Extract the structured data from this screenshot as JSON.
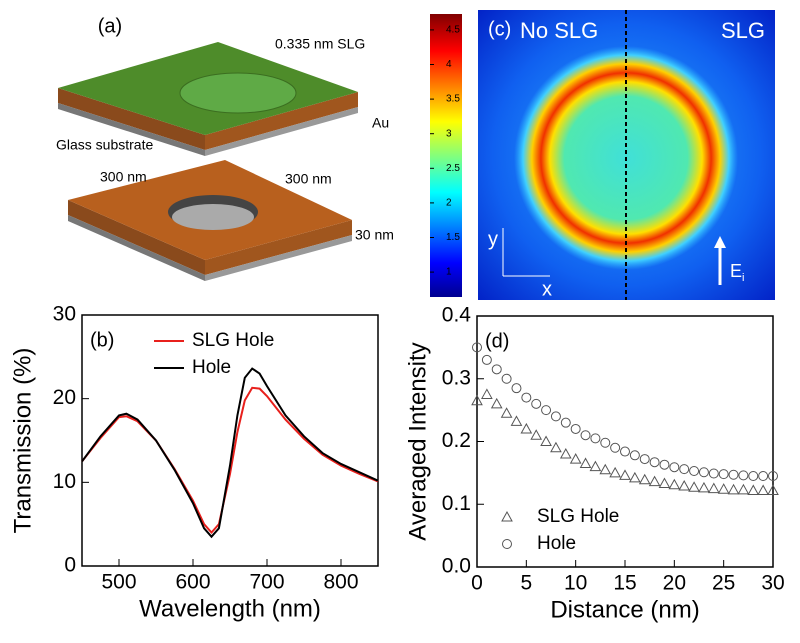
{
  "diagram": {
    "label": "(a)",
    "layer_label": "0.335 nm SLG",
    "metal_label": "Au",
    "substrate_label": "Glass substrate",
    "width_label": "300 nm",
    "length_label": "300 nm",
    "thickness_label": "30 nm"
  },
  "field_map": {
    "label": "(c)",
    "left_label": "No SLG",
    "right_label": "SLG",
    "y_axis_label": "y",
    "x_axis_label": "x",
    "field_label": "E",
    "field_subscript": "i",
    "colorbar": {
      "clim": [
        0.64,
        4.73
      ],
      "ticks": [
        1,
        1.5,
        2,
        2.5,
        3,
        3.5,
        4,
        4.5
      ]
    }
  },
  "chart_data": [
    {
      "type": "line",
      "label": "(b)",
      "xlabel": "Wavelength (nm)",
      "ylabel": "Transmission (%)",
      "x": [
        450,
        475,
        500,
        510,
        525,
        550,
        575,
        600,
        615,
        625,
        635,
        650,
        660,
        670,
        680,
        690,
        700,
        725,
        750,
        775,
        800,
        825,
        850
      ],
      "series": [
        {
          "name": "SLG Hole",
          "color": "#e8201c",
          "values": [
            12.5,
            15.3,
            17.8,
            17.9,
            17.3,
            15,
            11.6,
            7.8,
            5,
            4,
            5,
            11,
            16,
            19.8,
            21.3,
            21.2,
            20.3,
            17.5,
            15.2,
            13.3,
            12,
            11,
            10.1
          ]
        },
        {
          "name": "Hole",
          "color": "#000000",
          "values": [
            12.5,
            15.5,
            18,
            18.2,
            17.5,
            15,
            11.5,
            7.5,
            4.5,
            3.5,
            4.5,
            12,
            18,
            22.5,
            23.6,
            23,
            21.5,
            18,
            15.5,
            13.5,
            12.2,
            11.2,
            10.2
          ]
        }
      ],
      "xlim": [
        450,
        850
      ],
      "ylim": [
        0,
        30
      ],
      "xticks": [
        500,
        600,
        700,
        800
      ],
      "yticks": [
        0,
        10,
        20,
        30
      ],
      "legend": "upper left"
    },
    {
      "type": "scatter",
      "label": "(d)",
      "xlabel": "Distance (nm)",
      "ylabel": "Averaged Intensity",
      "x": [
        0,
        1,
        2,
        3,
        4,
        5,
        6,
        7,
        8,
        9,
        10,
        11,
        12,
        13,
        14,
        15,
        16,
        17,
        18,
        19,
        20,
        21,
        22,
        23,
        24,
        25,
        26,
        27,
        28,
        29,
        30
      ],
      "series": [
        {
          "name": "SLG Hole",
          "color": "#555555",
          "marker": "triangle",
          "values": [
            0.265,
            0.275,
            0.26,
            0.245,
            0.232,
            0.22,
            0.21,
            0.2,
            0.19,
            0.18,
            0.172,
            0.165,
            0.16,
            0.155,
            0.15,
            0.146,
            0.142,
            0.139,
            0.136,
            0.133,
            0.131,
            0.129,
            0.127,
            0.126,
            0.125,
            0.124,
            0.123,
            0.123,
            0.122,
            0.122,
            0.122
          ]
        },
        {
          "name": "Hole",
          "color": "#555555",
          "marker": "circle",
          "values": [
            0.35,
            0.33,
            0.315,
            0.3,
            0.285,
            0.27,
            0.26,
            0.25,
            0.24,
            0.23,
            0.22,
            0.21,
            0.205,
            0.198,
            0.19,
            0.184,
            0.178,
            0.172,
            0.167,
            0.163,
            0.159,
            0.156,
            0.153,
            0.151,
            0.149,
            0.148,
            0.147,
            0.146,
            0.145,
            0.145,
            0.145
          ]
        }
      ],
      "xlim": [
        0,
        30
      ],
      "ylim": [
        0,
        0.4
      ],
      "xticks": [
        0,
        5,
        10,
        15,
        20,
        25,
        30
      ],
      "yticks": [
        {
          "value": 0,
          "label": "0.0"
        },
        0.1,
        0.2,
        0.3,
        0.4
      ],
      "legend": "lower left"
    }
  ]
}
